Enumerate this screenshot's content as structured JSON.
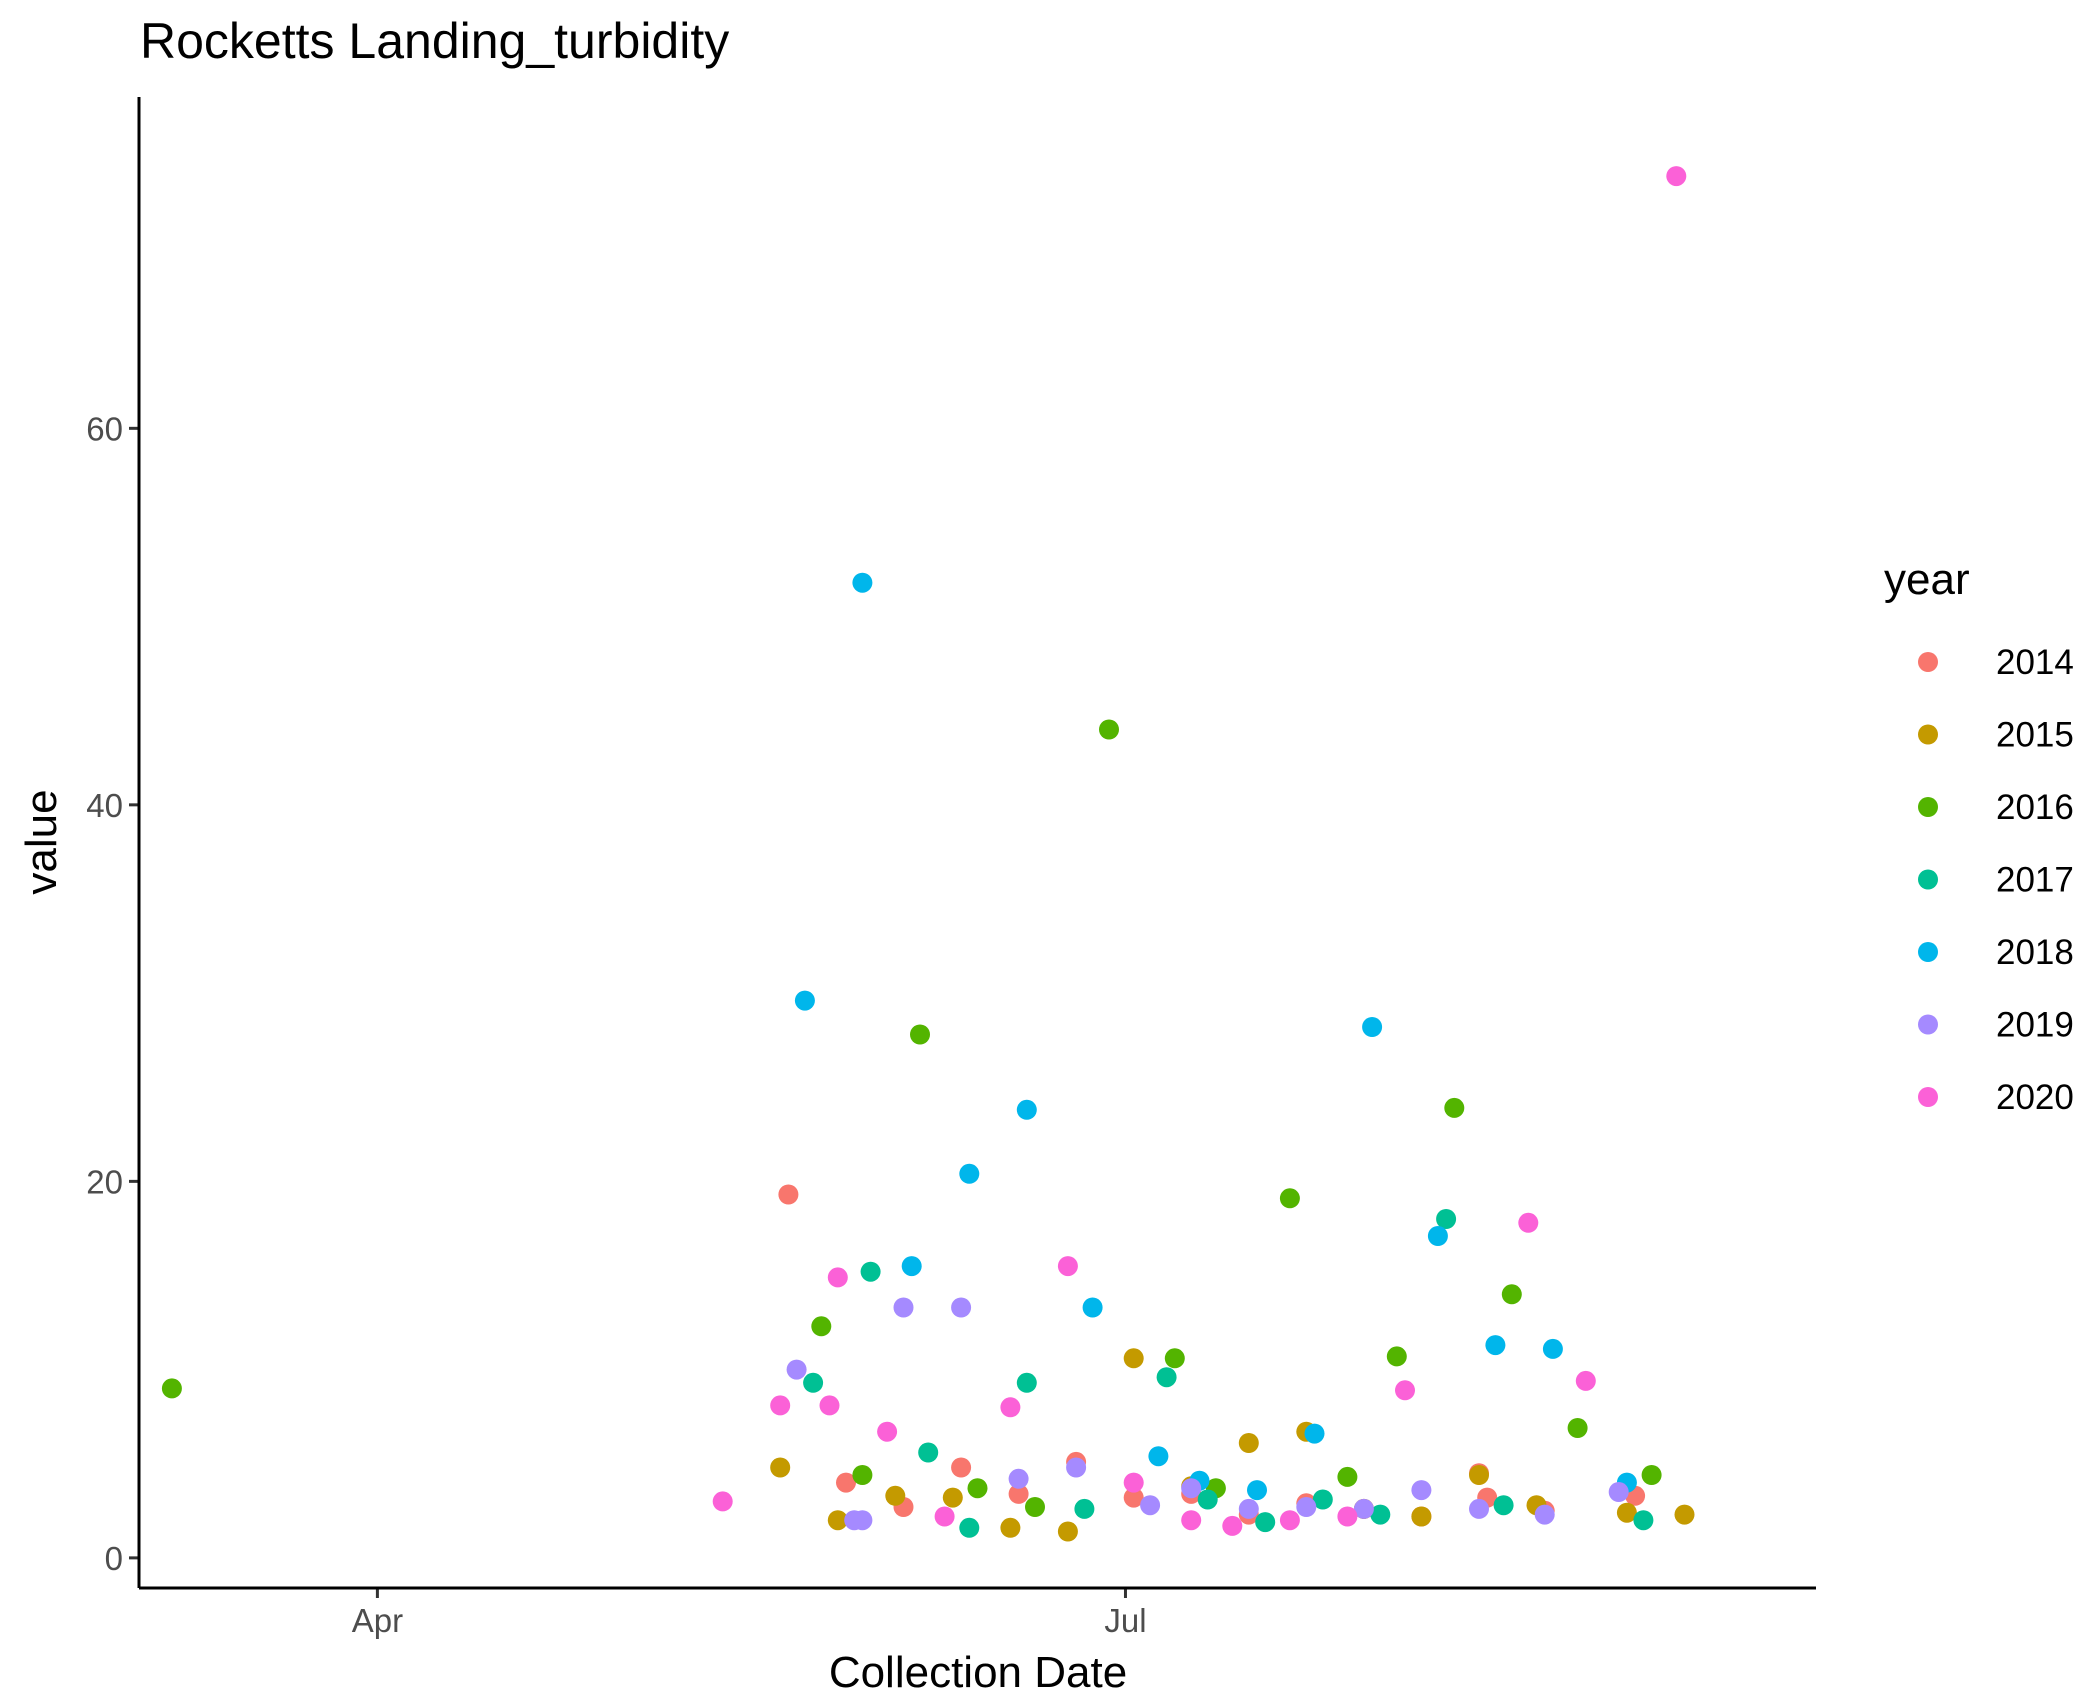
{
  "chart_data": {
    "type": "scatter",
    "title": "Rocketts Landing_turbidity",
    "xlabel": "Collection Date",
    "ylabel": "value",
    "x_axis_type": "date",
    "xlim": [
      "2020-03-03",
      "2020-09-23"
    ],
    "ylim": [
      -1.6,
      77.6
    ],
    "x_ticks": [
      {
        "date": "2020-04-01",
        "label": "Apr"
      },
      {
        "date": "2020-07-01",
        "label": "Jul"
      }
    ],
    "y_ticks": [
      0,
      20,
      40,
      60
    ],
    "grid": false,
    "legend": {
      "title": "year",
      "position": "right"
    },
    "series": [
      {
        "name": "2014",
        "color": "#F8766D",
        "points": [
          [
            "2020-05-21",
            19.3
          ],
          [
            "2020-05-28",
            4.0
          ],
          [
            "2020-06-04",
            2.7
          ],
          [
            "2020-06-11",
            4.8
          ],
          [
            "2020-06-18",
            3.4
          ],
          [
            "2020-06-25",
            5.1
          ],
          [
            "2020-07-02",
            3.2
          ],
          [
            "2020-07-09",
            3.4
          ],
          [
            "2020-07-16",
            2.3
          ],
          [
            "2020-07-23",
            2.9
          ],
          [
            "2020-07-30",
            2.6
          ],
          [
            "2020-08-06",
            2.2
          ],
          [
            "2020-08-13",
            4.5
          ],
          [
            "2020-08-14",
            3.2
          ],
          [
            "2020-08-21",
            2.5
          ],
          [
            "2020-09-01",
            3.3
          ]
        ]
      },
      {
        "name": "2015",
        "color": "#C49A00",
        "points": [
          [
            "2020-05-20",
            4.8
          ],
          [
            "2020-05-27",
            2.0
          ],
          [
            "2020-06-03",
            3.3
          ],
          [
            "2020-06-10",
            3.2
          ],
          [
            "2020-06-17",
            1.6
          ],
          [
            "2020-06-24",
            1.4
          ],
          [
            "2020-07-02",
            10.6
          ],
          [
            "2020-07-09",
            3.8
          ],
          [
            "2020-07-16",
            6.1
          ],
          [
            "2020-07-23",
            6.7
          ],
          [
            "2020-07-30",
            2.6
          ],
          [
            "2020-08-06",
            2.2
          ],
          [
            "2020-08-13",
            4.4
          ],
          [
            "2020-08-20",
            2.8
          ],
          [
            "2020-08-31",
            2.4
          ],
          [
            "2020-09-07",
            2.3
          ]
        ]
      },
      {
        "name": "2016",
        "color": "#53B400",
        "points": [
          [
            "2020-03-07",
            9.0
          ],
          [
            "2020-05-25",
            12.3
          ],
          [
            "2020-05-30",
            4.4
          ],
          [
            "2020-06-06",
            27.8
          ],
          [
            "2020-06-13",
            3.7
          ],
          [
            "2020-06-20",
            2.7
          ],
          [
            "2020-06-29",
            44.0
          ],
          [
            "2020-07-07",
            10.6
          ],
          [
            "2020-07-12",
            3.7
          ],
          [
            "2020-07-21",
            19.1
          ],
          [
            "2020-07-28",
            4.3
          ],
          [
            "2020-08-03",
            10.7
          ],
          [
            "2020-08-10",
            23.9
          ],
          [
            "2020-08-17",
            14.0
          ],
          [
            "2020-08-25",
            6.9
          ],
          [
            "2020-09-03",
            4.4
          ]
        ]
      },
      {
        "name": "2017",
        "color": "#00C094",
        "points": [
          [
            "2020-05-24",
            9.3
          ],
          [
            "2020-05-31",
            15.2
          ],
          [
            "2020-06-07",
            5.6
          ],
          [
            "2020-06-12",
            1.6
          ],
          [
            "2020-06-19",
            9.3
          ],
          [
            "2020-06-26",
            2.6
          ],
          [
            "2020-07-06",
            9.6
          ],
          [
            "2020-07-11",
            3.1
          ],
          [
            "2020-07-18",
            1.9
          ],
          [
            "2020-07-25",
            3.1
          ],
          [
            "2020-08-01",
            2.3
          ],
          [
            "2020-08-09",
            18.0
          ],
          [
            "2020-08-16",
            2.8
          ],
          [
            "2020-09-02",
            2.0
          ]
        ]
      },
      {
        "name": "2018",
        "color": "#00B6EB",
        "points": [
          [
            "2020-05-23",
            29.6
          ],
          [
            "2020-05-30",
            51.8
          ],
          [
            "2020-06-05",
            15.5
          ],
          [
            "2020-06-12",
            20.4
          ],
          [
            "2020-06-19",
            23.8
          ],
          [
            "2020-06-27",
            13.3
          ],
          [
            "2020-07-05",
            5.4
          ],
          [
            "2020-07-10",
            4.1
          ],
          [
            "2020-07-17",
            3.6
          ],
          [
            "2020-07-24",
            6.6
          ],
          [
            "2020-07-31",
            28.2
          ],
          [
            "2020-08-08",
            17.1
          ],
          [
            "2020-08-15",
            11.3
          ],
          [
            "2020-08-22",
            11.1
          ],
          [
            "2020-08-31",
            4.0
          ]
        ]
      },
      {
        "name": "2019",
        "color": "#A58AFF",
        "points": [
          [
            "2020-05-22",
            10.0
          ],
          [
            "2020-05-29",
            2.0
          ],
          [
            "2020-05-30",
            2.0
          ],
          [
            "2020-06-04",
            13.3
          ],
          [
            "2020-06-11",
            13.3
          ],
          [
            "2020-06-18",
            4.2
          ],
          [
            "2020-06-25",
            4.8
          ],
          [
            "2020-07-04",
            2.8
          ],
          [
            "2020-07-09",
            3.7
          ],
          [
            "2020-07-16",
            2.6
          ],
          [
            "2020-07-23",
            2.7
          ],
          [
            "2020-07-30",
            2.6
          ],
          [
            "2020-08-06",
            3.6
          ],
          [
            "2020-08-13",
            2.6
          ],
          [
            "2020-08-21",
            2.3
          ],
          [
            "2020-08-30",
            3.5
          ]
        ]
      },
      {
        "name": "2020",
        "color": "#FB61D7",
        "points": [
          [
            "2020-05-13",
            3.0
          ],
          [
            "2020-05-20",
            8.1
          ],
          [
            "2020-05-26",
            8.1
          ],
          [
            "2020-05-27",
            14.9
          ],
          [
            "2020-06-02",
            6.7
          ],
          [
            "2020-06-09",
            2.2
          ],
          [
            "2020-06-17",
            8.0
          ],
          [
            "2020-06-24",
            15.5
          ],
          [
            "2020-07-02",
            4.0
          ],
          [
            "2020-07-09",
            2.0
          ],
          [
            "2020-07-14",
            1.7
          ],
          [
            "2020-07-21",
            2.0
          ],
          [
            "2020-07-28",
            2.2
          ],
          [
            "2020-08-04",
            8.9
          ],
          [
            "2020-08-19",
            17.8
          ],
          [
            "2020-08-26",
            9.4
          ],
          [
            "2020-09-06",
            73.4
          ]
        ]
      }
    ]
  }
}
